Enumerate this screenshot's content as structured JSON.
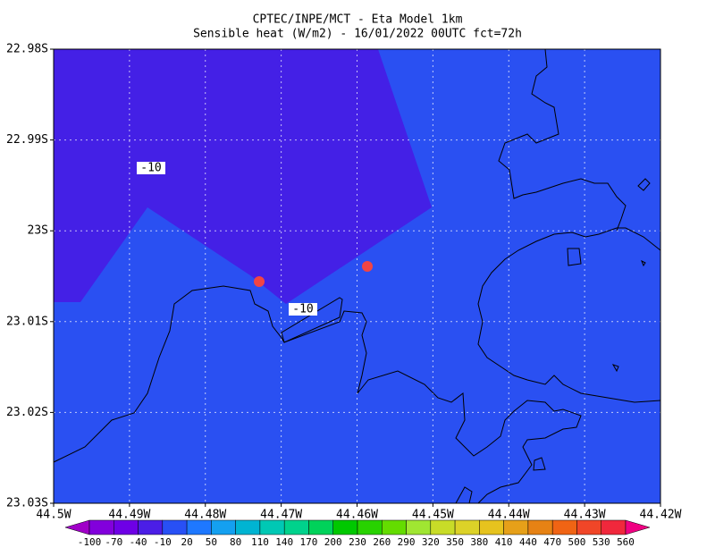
{
  "chart_data": {
    "type": "map",
    "title": [
      "CPTEC/INPE/MCT -  Eta Model 1km",
      "Sensible heat (W/m2) - 16/01/2022 00UTC fct=72h"
    ],
    "xlim": [
      -44.5,
      -44.42
    ],
    "ylim": [
      -23.03,
      -22.98
    ],
    "xticks": [
      {
        "value": -44.5,
        "label": "44.5W"
      },
      {
        "value": -44.49,
        "label": "44.49W"
      },
      {
        "value": -44.48,
        "label": "44.48W"
      },
      {
        "value": -44.47,
        "label": "44.47W"
      },
      {
        "value": -44.46,
        "label": "44.46W"
      },
      {
        "value": -44.45,
        "label": "44.45W"
      },
      {
        "value": -44.44,
        "label": "44.44W"
      },
      {
        "value": -44.43,
        "label": "44.43W"
      },
      {
        "value": -44.42,
        "label": "44.42W"
      }
    ],
    "yticks": [
      {
        "value": -22.98,
        "label": "22.98S"
      },
      {
        "value": -22.99,
        "label": "22.99S"
      },
      {
        "value": -23.0,
        "label": "23S"
      },
      {
        "value": -23.01,
        "label": "23.01S"
      },
      {
        "value": -23.02,
        "label": "23.02S"
      },
      {
        "value": -23.03,
        "label": "23.03S"
      }
    ],
    "grid": true,
    "background_color": "#2a50f2",
    "region_color": "#4420e6",
    "contour_labels": [
      "-10",
      "-10"
    ],
    "colorbar": {
      "ticks": [
        -100,
        -70,
        -40,
        -10,
        20,
        50,
        80,
        110,
        140,
        170,
        200,
        230,
        260,
        290,
        320,
        350,
        380,
        410,
        440,
        470,
        500,
        530,
        560
      ],
      "colors": [
        "#a000c8",
        "#8200dc",
        "#6e00e6",
        "#4b1ee6",
        "#2850f5",
        "#1e78ff",
        "#14a0f0",
        "#00b4d2",
        "#00c8b4",
        "#00d28c",
        "#00d25a",
        "#00c800",
        "#28d200",
        "#64dc00",
        "#a0e632",
        "#c8dc28",
        "#dcd228",
        "#e6c31e",
        "#e6a019",
        "#e68214",
        "#f06414",
        "#f04628",
        "#f0283c",
        "#f0145a",
        "#f00082"
      ]
    }
  }
}
